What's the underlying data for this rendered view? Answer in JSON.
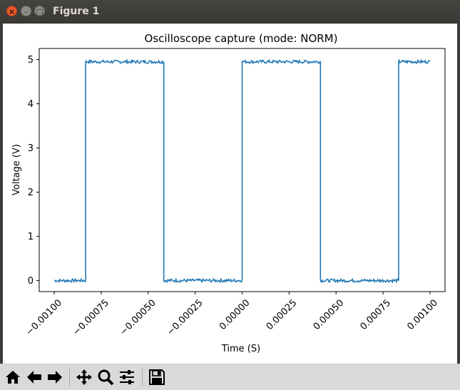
{
  "window": {
    "title": "Figure 1",
    "close_glyph": "×",
    "minimize_glyph": "–",
    "maximize_glyph": "□"
  },
  "toolbar": {
    "buttons": [
      {
        "name": "home-icon",
        "label": "Home"
      },
      {
        "name": "back-arrow-icon",
        "label": "Back"
      },
      {
        "name": "forward-arrow-icon",
        "label": "Forward"
      },
      {
        "name": "pan-icon",
        "label": "Pan"
      },
      {
        "name": "zoom-icon",
        "label": "Zoom"
      },
      {
        "name": "configure-subplots-icon",
        "label": "Subplots"
      },
      {
        "name": "save-icon",
        "label": "Save"
      }
    ]
  },
  "chart_data": {
    "type": "line",
    "title": "Oscilloscope capture (mode: NORM)",
    "xlabel": "Time (S)",
    "ylabel": "Voltage (V)",
    "xlim": [
      -0.00108,
      0.00108
    ],
    "ylim": [
      -0.25,
      5.25
    ],
    "xticks": [
      -0.001,
      -0.00075,
      -0.0005,
      -0.00025,
      0.0,
      0.00025,
      0.0005,
      0.00075,
      0.001
    ],
    "xtick_labels": [
      "−0.00100",
      "−0.00075",
      "−0.00050",
      "−0.00025",
      "0.00000",
      "0.00025",
      "0.00050",
      "0.00075",
      "0.00100"
    ],
    "yticks": [
      0,
      1,
      2,
      3,
      4,
      5
    ],
    "ytick_labels": [
      "0",
      "1",
      "2",
      "3",
      "4",
      "5"
    ],
    "grid": false,
    "series": [
      {
        "color": "#1f77b4",
        "waveform": "square",
        "low_level": 0.0,
        "high_level": 4.95,
        "x_start": -0.001,
        "x_end": 0.001,
        "edges": [
          {
            "x": -0.000833,
            "level": "rise"
          },
          {
            "x": -0.000417,
            "level": "fall"
          },
          {
            "x": 0.0,
            "level": "rise"
          },
          {
            "x": 0.000417,
            "level": "fall"
          },
          {
            "x": 0.000833,
            "level": "rise"
          }
        ],
        "points": [
          [
            -0.001,
            -0.02
          ],
          [
            -0.000833,
            0.0
          ],
          [
            -0.000833,
            4.98
          ],
          [
            -0.000417,
            4.95
          ],
          [
            -0.000417,
            0.0
          ],
          [
            0.0,
            0.0
          ],
          [
            0.0,
            4.96
          ],
          [
            0.000417,
            4.95
          ],
          [
            0.000417,
            0.0
          ],
          [
            0.000833,
            0.0
          ],
          [
            0.000833,
            4.96
          ],
          [
            0.001,
            4.95
          ]
        ]
      }
    ]
  }
}
